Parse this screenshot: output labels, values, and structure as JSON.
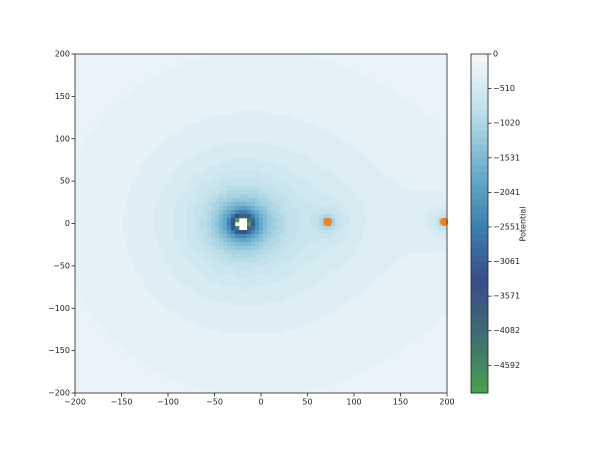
{
  "chart_data": {
    "type": "contour",
    "colorbar_label": "Potential",
    "xlim": [
      -200,
      200
    ],
    "ylim": [
      -200,
      200
    ],
    "xticks": [
      {
        "value": -200,
        "label": "−200"
      },
      {
        "value": -150,
        "label": "−150"
      },
      {
        "value": -100,
        "label": "−100"
      },
      {
        "value": -50,
        "label": "−50"
      },
      0,
      50,
      100,
      150,
      200
    ],
    "yticks": [
      {
        "value": -200,
        "label": "−200"
      },
      {
        "value": -150,
        "label": "−150"
      },
      {
        "value": -100,
        "label": "−100"
      },
      {
        "value": -50,
        "label": "−50"
      },
      0,
      50,
      100,
      150,
      200
    ],
    "zlim": [
      -5000,
      0
    ],
    "level_count": 50,
    "zticks": [
      0,
      {
        "value": -510.2,
        "label": "−510"
      },
      {
        "value": -1020.4,
        "label": "−1020"
      },
      {
        "value": -1530.6,
        "label": "−1531"
      },
      {
        "value": -2040.8,
        "label": "−2041"
      },
      {
        "value": -2551,
        "label": "−2551"
      },
      {
        "value": -3061.2,
        "label": "−3061"
      },
      {
        "value": -3571.4,
        "label": "−3571"
      },
      {
        "value": -4081.6,
        "label": "−4082"
      },
      {
        "value": -4591.8,
        "label": "−4592"
      }
    ],
    "colormap": [
      "#4aa04a",
      "#3d6f72",
      "#3a4b8c",
      "#3a84b3",
      "#6fb2cf",
      "#bfe0ea",
      "#f4f9fb"
    ],
    "sources": [
      {
        "x": -20,
        "y": 0,
        "strength": 35000,
        "marker": false
      },
      {
        "x": 72,
        "y": 2,
        "strength": 4000,
        "marker": true,
        "color": "#ff7f0e"
      },
      {
        "x": 197,
        "y": 2,
        "strength": 4000,
        "marker": true,
        "color": "#ff7f0e"
      }
    ]
  }
}
